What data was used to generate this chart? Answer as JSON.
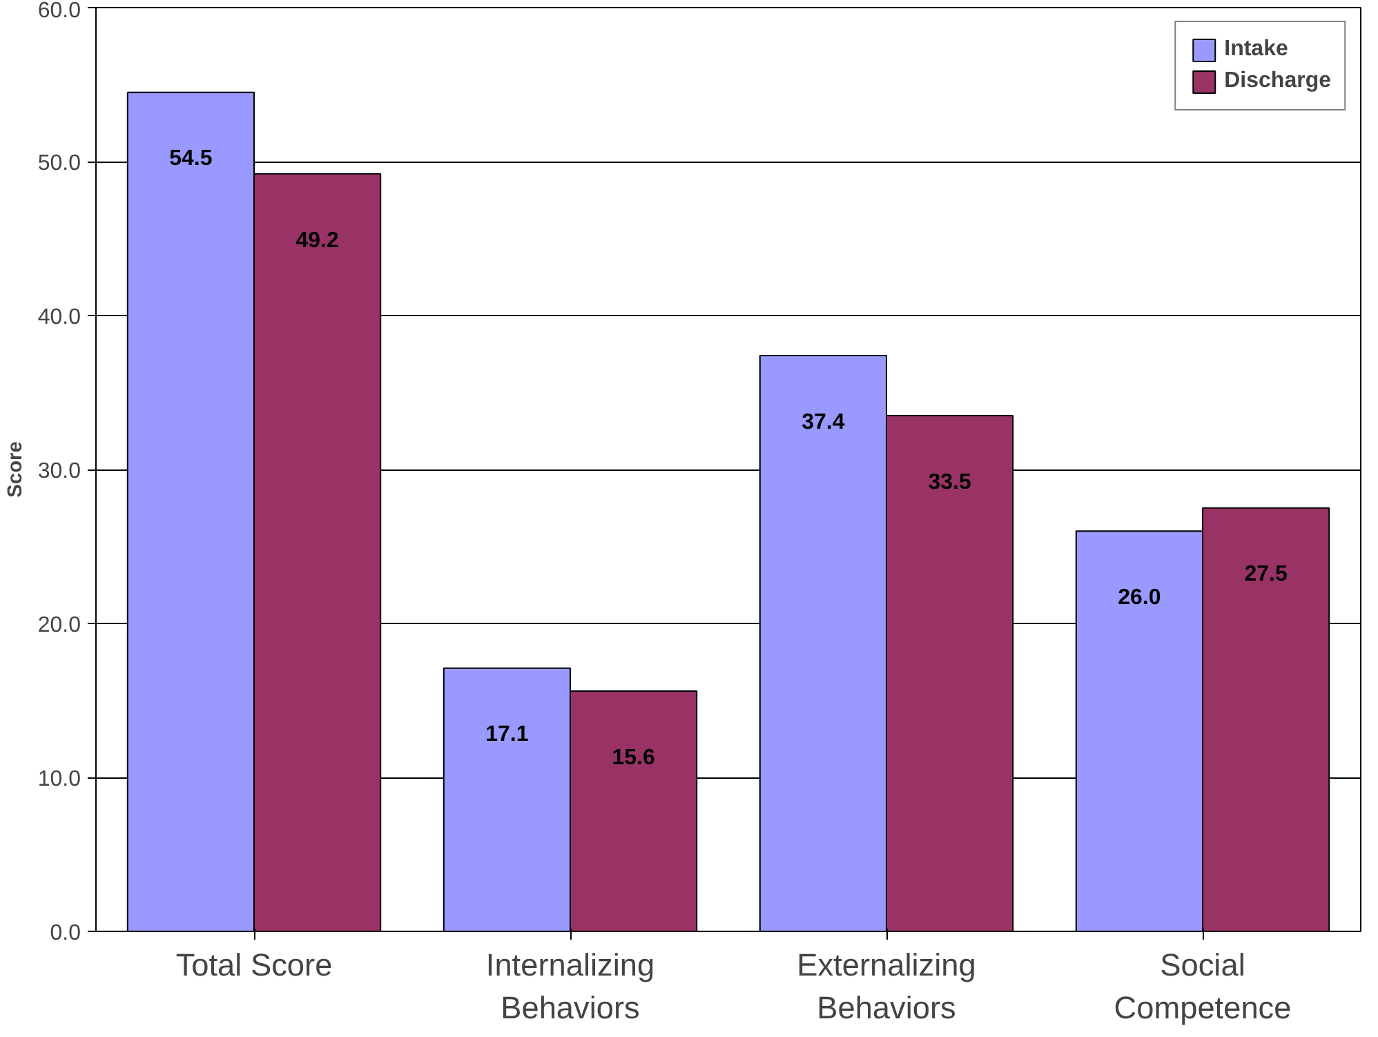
{
  "chart_data": {
    "type": "bar",
    "ylabel": "Score",
    "categories": [
      "Total Score",
      "Internalizing Behaviors",
      "Externalizing Behaviors",
      "Social Competence"
    ],
    "series": [
      {
        "name": "Intake",
        "color": "#9999ff",
        "values": [
          54.5,
          17.1,
          37.4,
          26.0
        ],
        "value_labels": [
          "54.5",
          "17.1",
          "37.4",
          "26.0"
        ]
      },
      {
        "name": "Discharge",
        "color": "#993366",
        "values": [
          49.2,
          15.6,
          33.5,
          27.5
        ],
        "value_labels": [
          "49.2",
          "15.6",
          "33.5",
          "27.5"
        ]
      }
    ],
    "ylim": [
      0,
      60
    ],
    "yticks": [
      {
        "value": 0,
        "label": "0.0"
      },
      {
        "value": 10,
        "label": "10.0"
      },
      {
        "value": 20,
        "label": "20.0"
      },
      {
        "value": 30,
        "label": "30.0"
      },
      {
        "value": 40,
        "label": "40.0"
      },
      {
        "value": 50,
        "label": "50.0"
      },
      {
        "value": 60,
        "label": "60.0"
      }
    ],
    "grid": "y",
    "legend": "top right"
  }
}
